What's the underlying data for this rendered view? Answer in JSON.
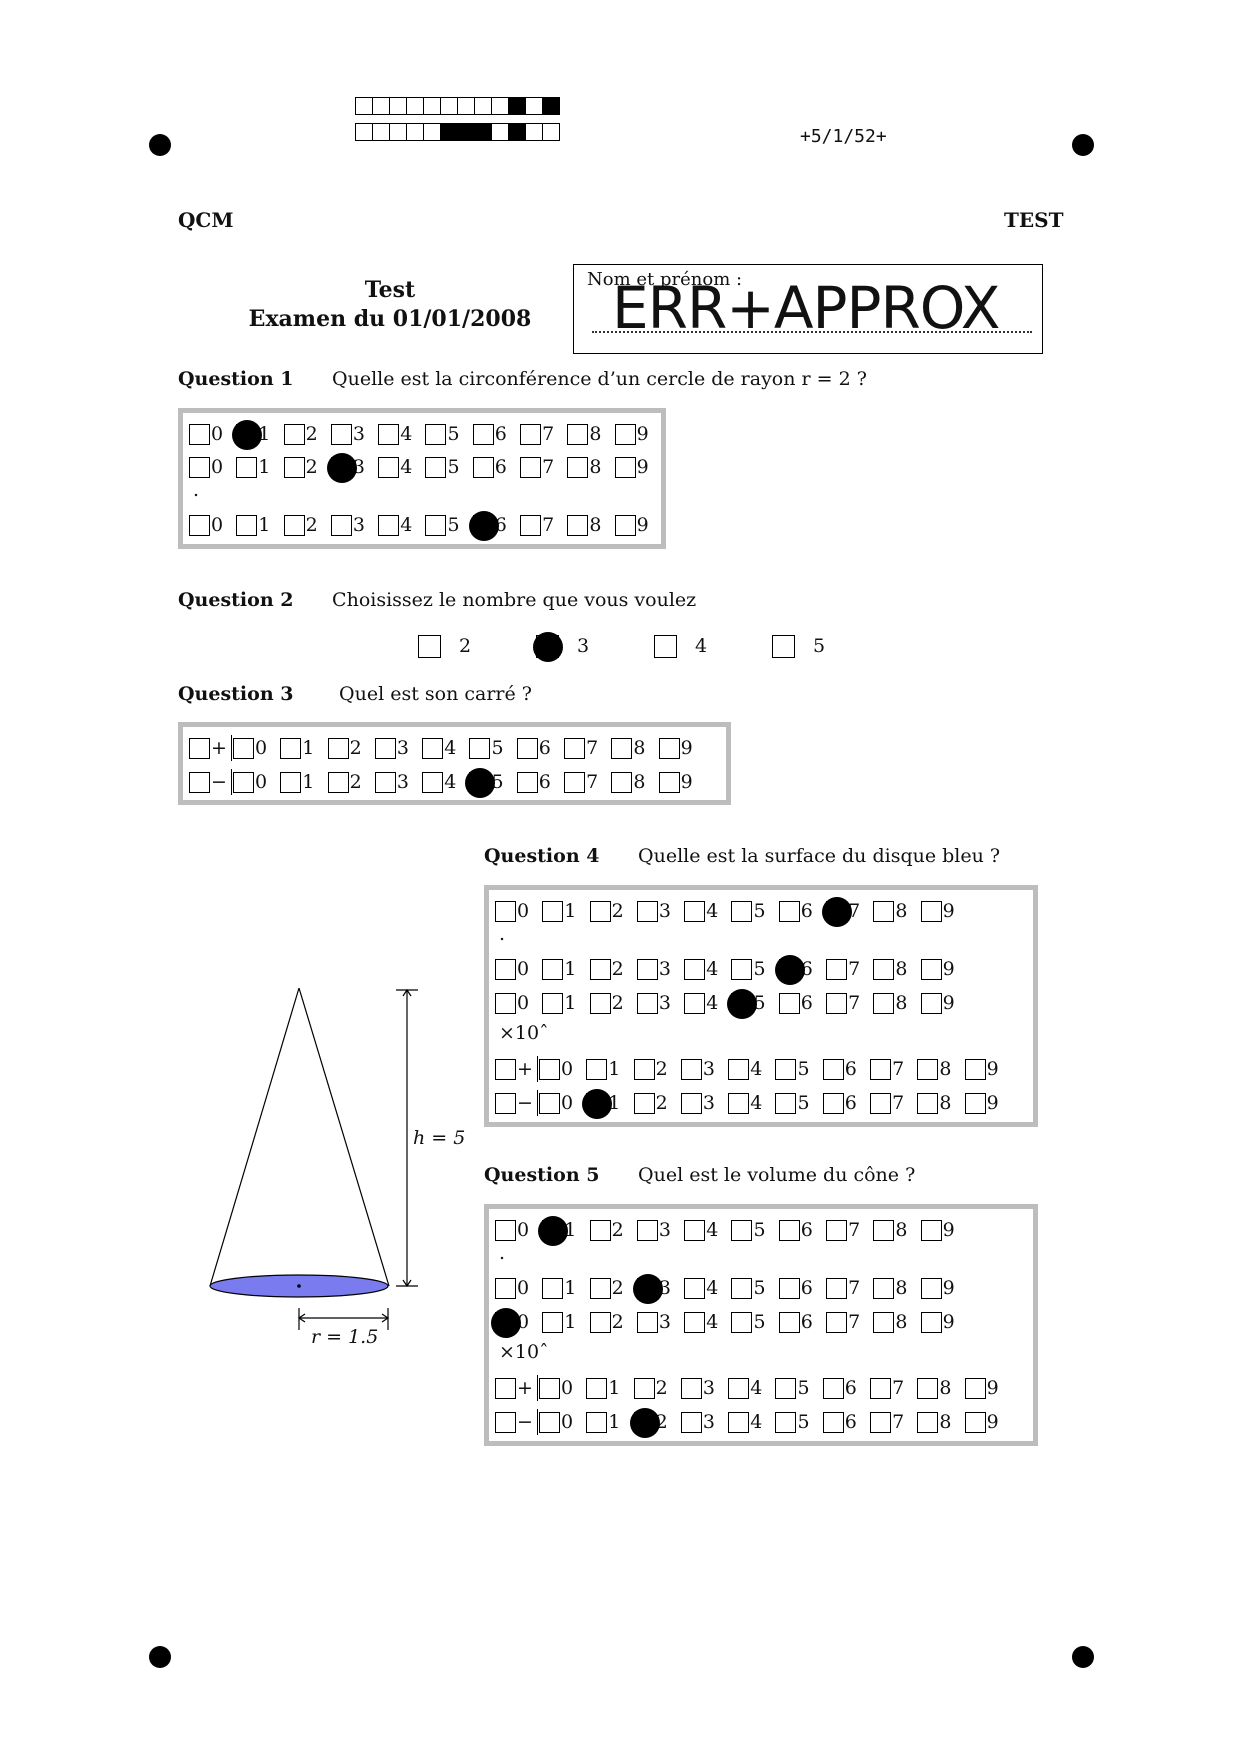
{
  "barcode": {
    "row1": [
      0,
      0,
      0,
      0,
      0,
      0,
      0,
      0,
      0,
      1,
      0,
      1
    ],
    "row2": [
      0,
      0,
      0,
      0,
      0,
      1,
      1,
      1,
      0,
      1,
      0,
      0
    ]
  },
  "page_code": "+5/1/52+",
  "header": {
    "left": "QCM",
    "right": "TEST"
  },
  "exam": {
    "title": "Test",
    "subtitle": "Examen du 01/01/2008"
  },
  "name_box": {
    "label": "Nom et prénom :",
    "value": "ERR+APPROX"
  },
  "digits": [
    "0",
    "1",
    "2",
    "3",
    "4",
    "5",
    "6",
    "7",
    "8",
    "9"
  ],
  "q1": {
    "label": "Question 1",
    "text": "Quelle est la circonférence d’un cercle de rayon r = 2 ?",
    "rows": [
      {
        "mark": 1
      },
      {
        "mark": 3
      },
      {
        "mark": 6
      }
    ],
    "separator": "."
  },
  "q2": {
    "label": "Question 2",
    "text": "Choisissez le nombre que vous voulez",
    "options": [
      "2",
      "3",
      "4",
      "5"
    ],
    "checked": "3"
  },
  "q3": {
    "label": "Question 3",
    "text": "Quel est son carré ?",
    "signs": [
      "+",
      "−"
    ],
    "rows": [
      {
        "sign_mark": false,
        "mark": -1
      },
      {
        "sign_mark": false,
        "mark": 5
      }
    ]
  },
  "q4": {
    "label": "Question 4",
    "text": "Quelle est la surface du disque bleu ?",
    "mantissa_rows": [
      {
        "mark": 7
      },
      {
        "mark": 6
      },
      {
        "mark": 5
      }
    ],
    "separator": ".",
    "exp_label": "×10ˆ",
    "signs": [
      "+",
      "−"
    ],
    "exp_rows": [
      {
        "mark": -1
      },
      {
        "mark": 1
      }
    ]
  },
  "q5": {
    "label": "Question 5",
    "text": "Quel est le volume du cône ?",
    "mantissa_rows": [
      {
        "mark": 1
      },
      {
        "mark": 3
      },
      {
        "mark": -2
      }
    ],
    "separator": ".",
    "exp_label": "×10ˆ",
    "signs": [
      "+",
      "−"
    ],
    "exp_rows": [
      {
        "mark": -1
      },
      {
        "mark": 2
      }
    ]
  },
  "figure": {
    "height_label": "h = 5",
    "radius_label": "r = 1.5",
    "base_color": "#7b7bf0"
  }
}
